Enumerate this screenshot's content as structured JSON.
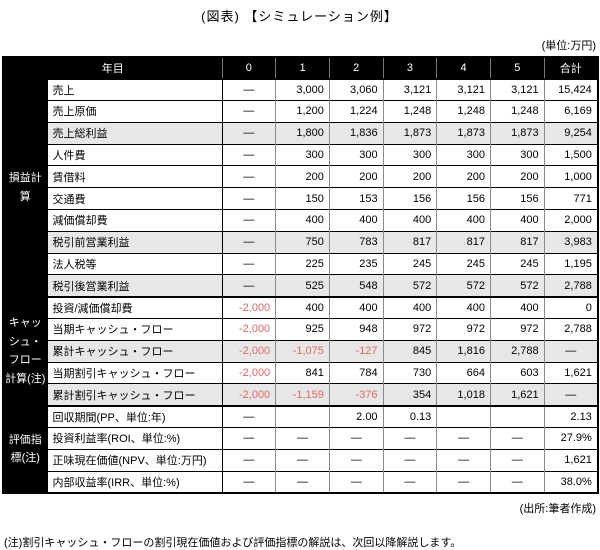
{
  "title": "(図表) 【シミュレーション例】",
  "unit_note": "(単位:万円)",
  "source_note": "(出所:筆者作成)",
  "footnote": "(注)割引キャッシュ・フローの割引現在価値および評価指標の解説は、次回以降解説します。",
  "colors": {
    "header_bg": "#000000",
    "header_text": "#ffffff",
    "shaded_row_bg": "#e7e7e7",
    "negative_text": "#e06666",
    "grid_minor": "#8a8a8a",
    "grid_major": "#000000"
  },
  "table": {
    "corner_header": "年目",
    "year_columns": [
      "0",
      "1",
      "2",
      "3",
      "4",
      "5",
      "合計"
    ],
    "groups": [
      {
        "name": "損益計算",
        "rows": [
          {
            "label": "売上",
            "shaded": false,
            "cells": [
              "―",
              "3,000",
              "3,060",
              "3,121",
              "3,121",
              "3,121",
              "15,424"
            ]
          },
          {
            "label": "売上原価",
            "shaded": false,
            "cells": [
              "―",
              "1,200",
              "1,224",
              "1,248",
              "1,248",
              "1,248",
              "6,169"
            ]
          },
          {
            "label": "売上総利益",
            "shaded": true,
            "cells": [
              "―",
              "1,800",
              "1,836",
              "1,873",
              "1,873",
              "1,873",
              "9,254"
            ]
          },
          {
            "label": "人件費",
            "shaded": false,
            "cells": [
              "―",
              "300",
              "300",
              "300",
              "300",
              "300",
              "1,500"
            ]
          },
          {
            "label": "賃借料",
            "shaded": false,
            "cells": [
              "―",
              "200",
              "200",
              "200",
              "200",
              "200",
              "1,000"
            ]
          },
          {
            "label": "交通費",
            "shaded": false,
            "cells": [
              "―",
              "150",
              "153",
              "156",
              "156",
              "156",
              "771"
            ]
          },
          {
            "label": "減価償却費",
            "shaded": false,
            "cells": [
              "―",
              "400",
              "400",
              "400",
              "400",
              "400",
              "2,000"
            ]
          },
          {
            "label": "税引前営業利益",
            "shaded": true,
            "cells": [
              "―",
              "750",
              "783",
              "817",
              "817",
              "817",
              "3,983"
            ]
          },
          {
            "label": "法人税等",
            "shaded": false,
            "cells": [
              "―",
              "225",
              "235",
              "245",
              "245",
              "245",
              "1,195"
            ]
          },
          {
            "label": "税引後営業利益",
            "shaded": true,
            "cells": [
              "―",
              "525",
              "548",
              "572",
              "572",
              "572",
              "2,788"
            ]
          }
        ]
      },
      {
        "name": "キャッシュ・フロー計算(注)",
        "rows": [
          {
            "label": "投資/減価償却費",
            "shaded": false,
            "cells": [
              "-2,000",
              "400",
              "400",
              "400",
              "400",
              "400",
              "0"
            ]
          },
          {
            "label": "当期キャッシュ・フロー",
            "shaded": false,
            "cells": [
              "-2,000",
              "925",
              "948",
              "972",
              "972",
              "972",
              "2,788"
            ]
          },
          {
            "label": "累計キャッシュ・フロー",
            "shaded": true,
            "cells": [
              "-2,000",
              "-1,075",
              "-127",
              "845",
              "1,816",
              "2,788",
              "―"
            ]
          },
          {
            "label": "当期割引キャッシュ・フロー",
            "shaded": false,
            "cells": [
              "-2,000",
              "841",
              "784",
              "730",
              "664",
              "603",
              "1,621"
            ]
          },
          {
            "label": "累計割引キャッシュ・フロー",
            "shaded": true,
            "cells": [
              "-2,000",
              "-1,159",
              "-376",
              "354",
              "1,018",
              "1,621",
              "―"
            ]
          }
        ]
      },
      {
        "name": "評価指標(注)",
        "rows": [
          {
            "label": "回収期間(PP、単位:年)",
            "shaded": false,
            "cells": [
              "―",
              "",
              "2.00",
              "0.13",
              "",
              "",
              "2.13"
            ]
          },
          {
            "label": "投資利益率(ROI、単位:%)",
            "shaded": false,
            "cells": [
              "―",
              "―",
              "―",
              "―",
              "―",
              "―",
              "27.9%"
            ]
          },
          {
            "label": "正味現在価値(NPV、単位:万円)",
            "shaded": false,
            "cells": [
              "―",
              "―",
              "―",
              "―",
              "―",
              "―",
              "1,621"
            ]
          },
          {
            "label": "内部収益率(IRR、単位:%)",
            "shaded": false,
            "cells": [
              "―",
              "―",
              "―",
              "―",
              "―",
              "―",
              "38.0%"
            ]
          }
        ]
      }
    ]
  }
}
